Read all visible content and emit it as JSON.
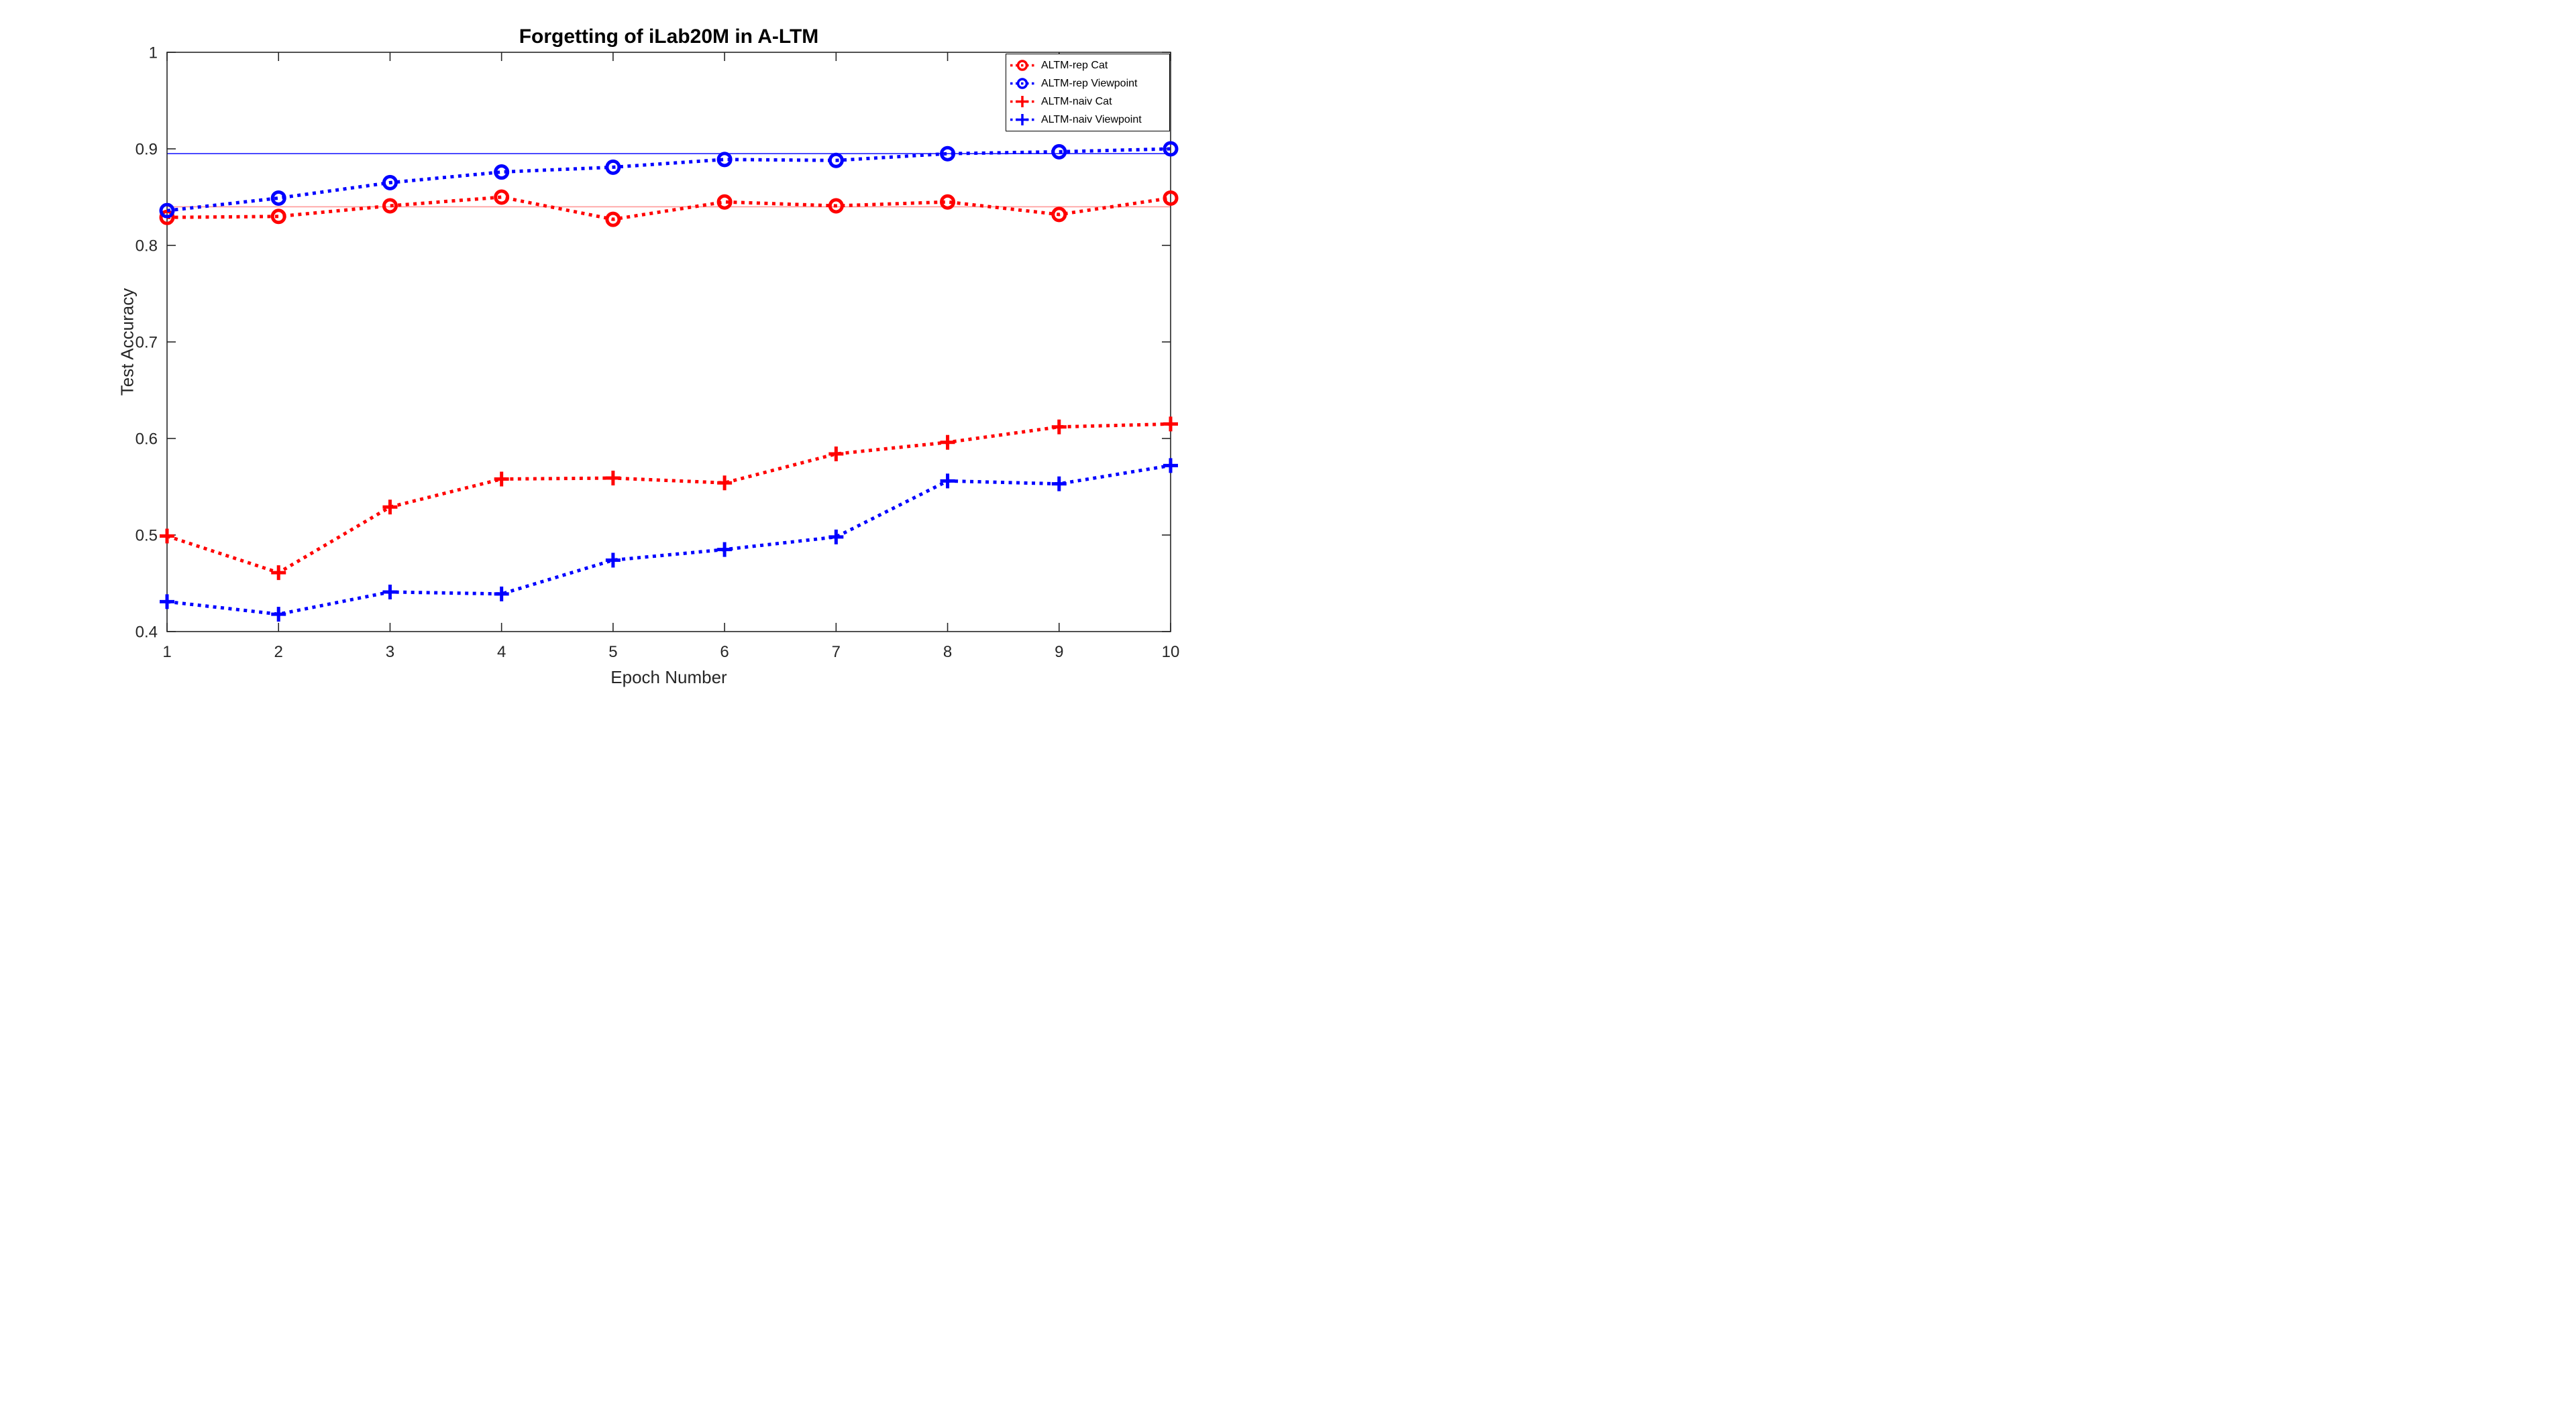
{
  "chart_data": {
    "type": "line",
    "title": "Forgetting of iLab20M in A-LTM",
    "xlabel": "Epoch Number",
    "ylabel": "Test Accuracy",
    "x": [
      1,
      2,
      3,
      4,
      5,
      6,
      7,
      8,
      9,
      10
    ],
    "xlim": [
      1,
      10
    ],
    "ylim": [
      0.4,
      1.0
    ],
    "xticks": [
      1,
      2,
      3,
      4,
      5,
      6,
      7,
      8,
      9,
      10
    ],
    "xtick_labels": [
      "1",
      "2",
      "3",
      "4",
      "5",
      "6",
      "7",
      "8",
      "9",
      "10"
    ],
    "yticks": [
      0.4,
      0.5,
      0.6,
      0.7,
      0.8,
      0.9,
      1.0
    ],
    "ytick_labels": [
      "0.4",
      "0.5",
      "0.6",
      "0.7",
      "0.8",
      "0.9",
      "1"
    ],
    "grid": false,
    "legend_position": "top-right",
    "axis_color": "#262626",
    "series": [
      {
        "name": "ALTM-rep Cat",
        "color": "#ff0000",
        "marker": "circle",
        "linestyle": "dotted",
        "values": [
          0.829,
          0.83,
          0.841,
          0.85,
          0.827,
          0.845,
          0.841,
          0.845,
          0.832,
          0.849
        ]
      },
      {
        "name": "ALTM-rep Viewpoint",
        "color": "#0000ff",
        "marker": "circle",
        "linestyle": "dotted",
        "values": [
          0.836,
          0.849,
          0.865,
          0.876,
          0.881,
          0.889,
          0.888,
          0.895,
          0.897,
          0.9
        ]
      },
      {
        "name": "ALTM-naiv Cat",
        "color": "#ff0000",
        "marker": "plus",
        "linestyle": "dotted",
        "values": [
          0.499,
          0.461,
          0.529,
          0.558,
          0.559,
          0.554,
          0.584,
          0.596,
          0.612,
          0.615
        ]
      },
      {
        "name": "ALTM-naiv Viewpoint",
        "color": "#0000ff",
        "marker": "plus",
        "linestyle": "dotted",
        "values": [
          0.431,
          0.418,
          0.441,
          0.439,
          0.474,
          0.485,
          0.498,
          0.556,
          0.553,
          0.572
        ]
      }
    ],
    "reference_lines": [
      {
        "value": 0.895,
        "color": "#2222ff"
      },
      {
        "value": 0.84,
        "color": "#ff9999"
      }
    ]
  }
}
